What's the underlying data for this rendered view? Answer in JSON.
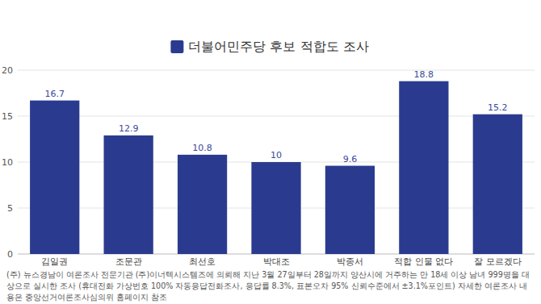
{
  "chart_data": {
    "type": "bar",
    "title": "더불어민주당 후보 적합도 조사",
    "categories": [
      "김일권",
      "조문관",
      "최선호",
      "박대조",
      "박종서",
      "적합 인물 없다",
      "잘 모르겠다"
    ],
    "values": [
      16.7,
      12.9,
      10.8,
      10,
      9.6,
      18.8,
      15.2
    ],
    "color": "#2a3b8f",
    "ylim": [
      0,
      20
    ],
    "yticks": [
      0,
      5,
      10,
      15,
      20
    ],
    "grid": true,
    "data_labels": true,
    "annotations": [
      "(주) 뉴스경남이 여론조사 전문기관 (주)이너텍시스템즈에 의뢰해 지난 3월 27일부터 28일까지 양산시에 거주하는 만 18세 이상 남녀 999명을 대상으로 실시한 조사 (휴대전화 가상번호 100% 자동응답전화조사, 응답률 8.3%, 표본오차 95% 신뢰수준에서 ±3.1%포인트) 자세한 여론조사 내용은 중앙선거여론조사심의위 홈페이지 참조"
    ]
  }
}
